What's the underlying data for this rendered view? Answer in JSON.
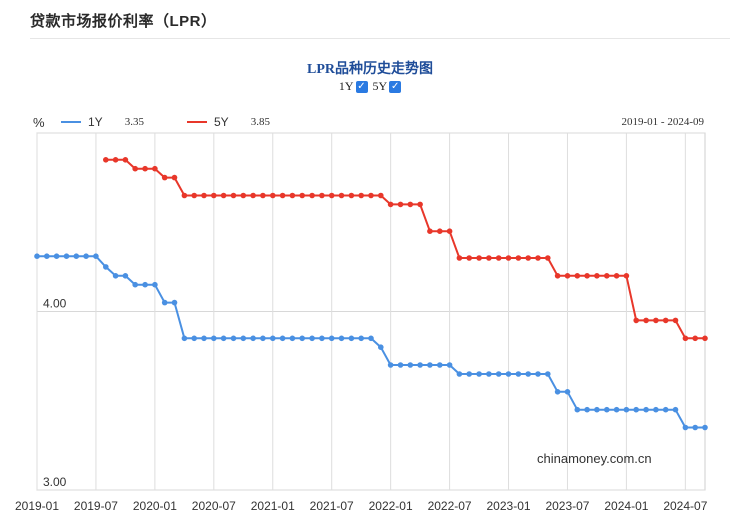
{
  "page": {
    "title": "贷款市场报价利率（LPR）",
    "watermark": "chinamoney.com.cn"
  },
  "chart": {
    "title": "LPR品种历史走势图",
    "toggles": [
      {
        "label": "1Y",
        "checked": true
      },
      {
        "label": "5Y",
        "checked": true
      }
    ],
    "unit": "%",
    "range_text": "2019-01 - 2024-09",
    "legend": [
      {
        "label": "1Y",
        "value": "3.35",
        "color": "#4a90e2"
      },
      {
        "label": "5Y",
        "value": "3.85",
        "color": "#e8372a"
      }
    ]
  },
  "chart_data": {
    "type": "line",
    "x_axis": {
      "start": "2019-01",
      "end": "2024-09",
      "tick_labels": [
        "2019-01",
        "2019-07",
        "2020-01",
        "2020-07",
        "2021-01",
        "2021-07",
        "2022-01",
        "2022-07",
        "2023-01",
        "2023-07",
        "2024-01",
        "2024-07"
      ]
    },
    "y_axis": {
      "tick_labels": [
        "4.00",
        "3.00"
      ],
      "ticks": [
        4.0,
        3.0
      ],
      "gridlines": [
        3.0,
        4.0,
        5.0
      ]
    },
    "grid": true,
    "series": [
      {
        "name": "1Y",
        "color": "#4a90e2",
        "points": [
          [
            "2019-01",
            4.31
          ],
          [
            "2019-02",
            4.31
          ],
          [
            "2019-03",
            4.31
          ],
          [
            "2019-04",
            4.31
          ],
          [
            "2019-05",
            4.31
          ],
          [
            "2019-06",
            4.31
          ],
          [
            "2019-07",
            4.31
          ],
          [
            "2019-08",
            4.25
          ],
          [
            "2019-09",
            4.2
          ],
          [
            "2019-10",
            4.2
          ],
          [
            "2019-11",
            4.15
          ],
          [
            "2019-12",
            4.15
          ],
          [
            "2020-01",
            4.15
          ],
          [
            "2020-02",
            4.05
          ],
          [
            "2020-03",
            4.05
          ],
          [
            "2020-04",
            3.85
          ],
          [
            "2020-05",
            3.85
          ],
          [
            "2020-06",
            3.85
          ],
          [
            "2020-07",
            3.85
          ],
          [
            "2020-08",
            3.85
          ],
          [
            "2020-09",
            3.85
          ],
          [
            "2020-10",
            3.85
          ],
          [
            "2020-11",
            3.85
          ],
          [
            "2020-12",
            3.85
          ],
          [
            "2021-01",
            3.85
          ],
          [
            "2021-02",
            3.85
          ],
          [
            "2021-03",
            3.85
          ],
          [
            "2021-04",
            3.85
          ],
          [
            "2021-05",
            3.85
          ],
          [
            "2021-06",
            3.85
          ],
          [
            "2021-07",
            3.85
          ],
          [
            "2021-08",
            3.85
          ],
          [
            "2021-09",
            3.85
          ],
          [
            "2021-10",
            3.85
          ],
          [
            "2021-11",
            3.85
          ],
          [
            "2021-12",
            3.8
          ],
          [
            "2022-01",
            3.7
          ],
          [
            "2022-02",
            3.7
          ],
          [
            "2022-03",
            3.7
          ],
          [
            "2022-04",
            3.7
          ],
          [
            "2022-05",
            3.7
          ],
          [
            "2022-06",
            3.7
          ],
          [
            "2022-07",
            3.7
          ],
          [
            "2022-08",
            3.65
          ],
          [
            "2022-09",
            3.65
          ],
          [
            "2022-10",
            3.65
          ],
          [
            "2022-11",
            3.65
          ],
          [
            "2022-12",
            3.65
          ],
          [
            "2023-01",
            3.65
          ],
          [
            "2023-02",
            3.65
          ],
          [
            "2023-03",
            3.65
          ],
          [
            "2023-04",
            3.65
          ],
          [
            "2023-05",
            3.65
          ],
          [
            "2023-06",
            3.55
          ],
          [
            "2023-07",
            3.55
          ],
          [
            "2023-08",
            3.45
          ],
          [
            "2023-09",
            3.45
          ],
          [
            "2023-10",
            3.45
          ],
          [
            "2023-11",
            3.45
          ],
          [
            "2023-12",
            3.45
          ],
          [
            "2024-01",
            3.45
          ],
          [
            "2024-02",
            3.45
          ],
          [
            "2024-03",
            3.45
          ],
          [
            "2024-04",
            3.45
          ],
          [
            "2024-05",
            3.45
          ],
          [
            "2024-06",
            3.45
          ],
          [
            "2024-07",
            3.35
          ],
          [
            "2024-08",
            3.35
          ],
          [
            "2024-09",
            3.35
          ]
        ]
      },
      {
        "name": "5Y",
        "color": "#e8372a",
        "points": [
          [
            "2019-08",
            4.85
          ],
          [
            "2019-09",
            4.85
          ],
          [
            "2019-10",
            4.85
          ],
          [
            "2019-11",
            4.8
          ],
          [
            "2019-12",
            4.8
          ],
          [
            "2020-01",
            4.8
          ],
          [
            "2020-02",
            4.75
          ],
          [
            "2020-03",
            4.75
          ],
          [
            "2020-04",
            4.65
          ],
          [
            "2020-05",
            4.65
          ],
          [
            "2020-06",
            4.65
          ],
          [
            "2020-07",
            4.65
          ],
          [
            "2020-08",
            4.65
          ],
          [
            "2020-09",
            4.65
          ],
          [
            "2020-10",
            4.65
          ],
          [
            "2020-11",
            4.65
          ],
          [
            "2020-12",
            4.65
          ],
          [
            "2021-01",
            4.65
          ],
          [
            "2021-02",
            4.65
          ],
          [
            "2021-03",
            4.65
          ],
          [
            "2021-04",
            4.65
          ],
          [
            "2021-05",
            4.65
          ],
          [
            "2021-06",
            4.65
          ],
          [
            "2021-07",
            4.65
          ],
          [
            "2021-08",
            4.65
          ],
          [
            "2021-09",
            4.65
          ],
          [
            "2021-10",
            4.65
          ],
          [
            "2021-11",
            4.65
          ],
          [
            "2021-12",
            4.65
          ],
          [
            "2022-01",
            4.6
          ],
          [
            "2022-02",
            4.6
          ],
          [
            "2022-03",
            4.6
          ],
          [
            "2022-04",
            4.6
          ],
          [
            "2022-05",
            4.45
          ],
          [
            "2022-06",
            4.45
          ],
          [
            "2022-07",
            4.45
          ],
          [
            "2022-08",
            4.3
          ],
          [
            "2022-09",
            4.3
          ],
          [
            "2022-10",
            4.3
          ],
          [
            "2022-11",
            4.3
          ],
          [
            "2022-12",
            4.3
          ],
          [
            "2023-01",
            4.3
          ],
          [
            "2023-02",
            4.3
          ],
          [
            "2023-03",
            4.3
          ],
          [
            "2023-04",
            4.3
          ],
          [
            "2023-05",
            4.3
          ],
          [
            "2023-06",
            4.2
          ],
          [
            "2023-07",
            4.2
          ],
          [
            "2023-08",
            4.2
          ],
          [
            "2023-09",
            4.2
          ],
          [
            "2023-10",
            4.2
          ],
          [
            "2023-11",
            4.2
          ],
          [
            "2023-12",
            4.2
          ],
          [
            "2024-01",
            4.2
          ],
          [
            "2024-02",
            3.95
          ],
          [
            "2024-03",
            3.95
          ],
          [
            "2024-04",
            3.95
          ],
          [
            "2024-05",
            3.95
          ],
          [
            "2024-06",
            3.95
          ],
          [
            "2024-07",
            3.85
          ],
          [
            "2024-08",
            3.85
          ],
          [
            "2024-09",
            3.85
          ]
        ]
      }
    ]
  }
}
